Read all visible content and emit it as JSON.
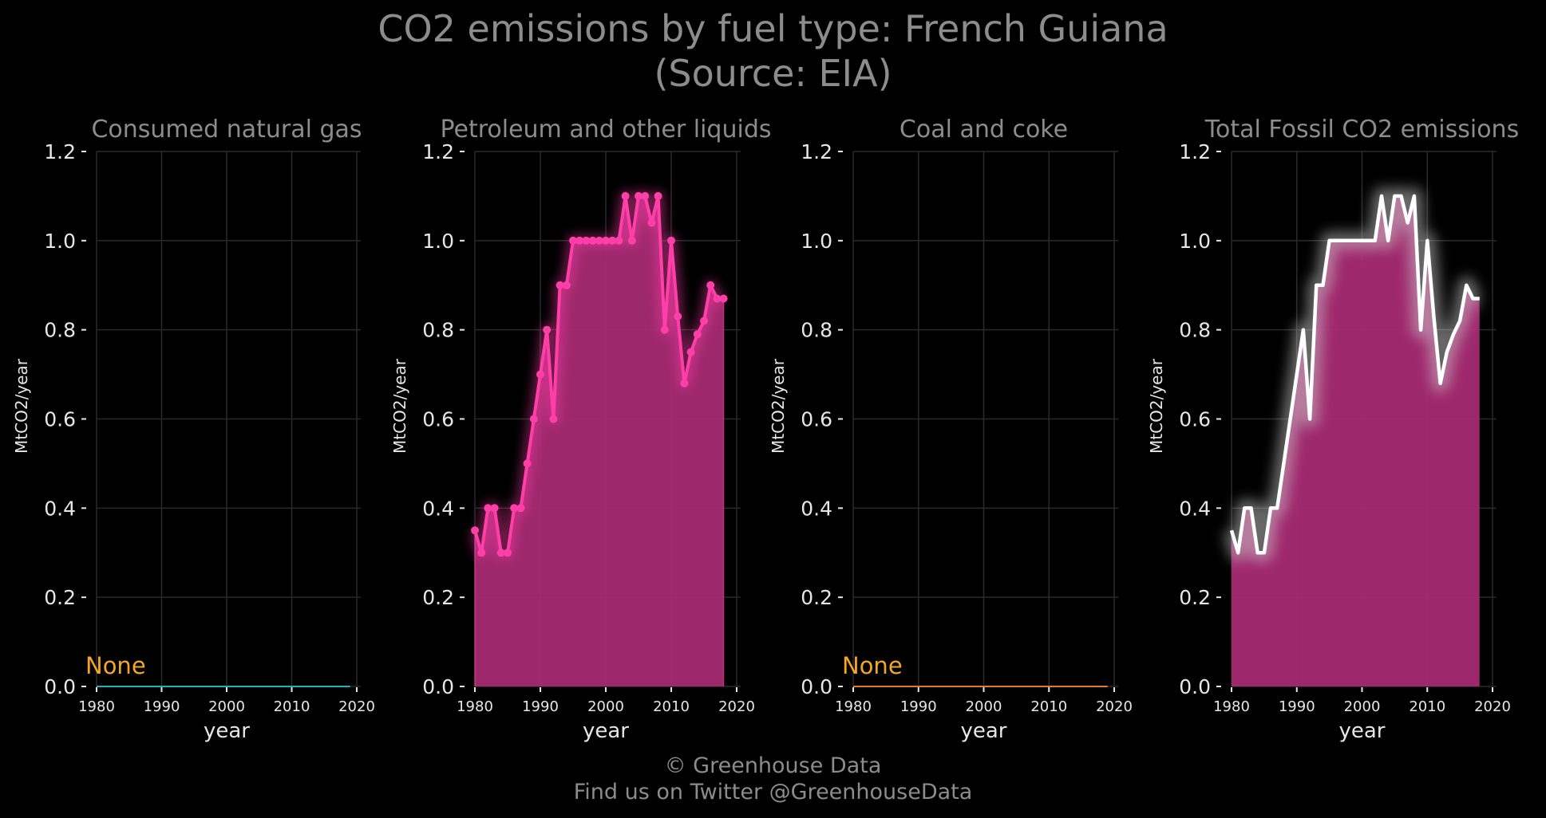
{
  "title": {
    "line1": "CO2 emissions by fuel type: French Guiana",
    "line2": "(Source: EIA)"
  },
  "footer": {
    "line1": "© Greenhouse Data",
    "line2": "Find us on Twitter @GreenhouseData"
  },
  "colors": {
    "background": "#000000",
    "grid": "#2a2a2a",
    "title_text": "#8c8c8c",
    "tick_text": "#e6e6e6",
    "petroleum_line": "#ff3ea8",
    "area_fill": "#a62a72",
    "total_line": "#ffffff",
    "gas_line": "#19b5b0",
    "coal_line": "#e07b2a",
    "none_label": "#f5a623"
  },
  "chart_data": [
    {
      "type": "area",
      "title": "Consumed natural gas",
      "xlabel": "year",
      "ylabel": "MtCO2/year",
      "xlim": [
        1980,
        2020
      ],
      "ylim": [
        0,
        1.2
      ],
      "xticks": [
        1980,
        1990,
        2000,
        2010,
        2020
      ],
      "yticks": [
        "0.0",
        "0.2",
        "0.4",
        "0.6",
        "0.8",
        "1.0",
        "1.2"
      ],
      "grid": true,
      "annotation": "None",
      "series": [
        {
          "color": "#19b5b0",
          "style": "flat",
          "x": [
            1980,
            2019
          ],
          "y": [
            0,
            0
          ]
        }
      ]
    },
    {
      "type": "area",
      "title": "Petroleum and other liquids",
      "xlabel": "year",
      "ylabel": "MtCO2/year",
      "xlim": [
        1980,
        2020
      ],
      "ylim": [
        0,
        1.2
      ],
      "xticks": [
        1980,
        1990,
        2000,
        2010,
        2020
      ],
      "yticks": [
        "0.0",
        "0.2",
        "0.4",
        "0.6",
        "0.8",
        "1.0",
        "1.2"
      ],
      "grid": true,
      "series": [
        {
          "color": "#ff3ea8",
          "style": "markers",
          "x": [
            1980,
            1981,
            1982,
            1983,
            1984,
            1985,
            1986,
            1987,
            1988,
            1989,
            1990,
            1991,
            1992,
            1993,
            1994,
            1995,
            1996,
            1997,
            1998,
            1999,
            2000,
            2001,
            2002,
            2003,
            2004,
            2005,
            2006,
            2007,
            2008,
            2009,
            2010,
            2011,
            2012,
            2013,
            2014,
            2015,
            2016,
            2017,
            2018
          ],
          "y": [
            0.35,
            0.3,
            0.4,
            0.4,
            0.3,
            0.3,
            0.4,
            0.4,
            0.5,
            0.6,
            0.7,
            0.8,
            0.6,
            0.9,
            0.9,
            1.0,
            1.0,
            1.0,
            1.0,
            1.0,
            1.0,
            1.0,
            1.0,
            1.1,
            1.0,
            1.1,
            1.1,
            1.04,
            1.1,
            0.8,
            1.0,
            0.83,
            0.68,
            0.75,
            0.79,
            0.82,
            0.9,
            0.87,
            0.87
          ]
        }
      ]
    },
    {
      "type": "area",
      "title": "Coal and coke",
      "xlabel": "year",
      "ylabel": "MtCO2/year",
      "xlim": [
        1980,
        2020
      ],
      "ylim": [
        0,
        1.2
      ],
      "xticks": [
        1980,
        1990,
        2000,
        2010,
        2020
      ],
      "yticks": [
        "0.0",
        "0.2",
        "0.4",
        "0.6",
        "0.8",
        "1.0",
        "1.2"
      ],
      "grid": true,
      "annotation": "None",
      "series": [
        {
          "color": "#e07b2a",
          "style": "flat",
          "x": [
            1980,
            2019
          ],
          "y": [
            0,
            0
          ]
        }
      ]
    },
    {
      "type": "area",
      "title": "Total Fossil CO2 emissions",
      "xlabel": "year",
      "ylabel": "MtCO2/year",
      "xlim": [
        1980,
        2020
      ],
      "ylim": [
        0,
        1.2
      ],
      "xticks": [
        1980,
        1990,
        2000,
        2010,
        2020
      ],
      "yticks": [
        "0.0",
        "0.2",
        "0.4",
        "0.6",
        "0.8",
        "1.0",
        "1.2"
      ],
      "grid": true,
      "series": [
        {
          "color": "#ffffff",
          "style": "line",
          "x": [
            1980,
            1981,
            1982,
            1983,
            1984,
            1985,
            1986,
            1987,
            1988,
            1989,
            1990,
            1991,
            1992,
            1993,
            1994,
            1995,
            1996,
            1997,
            1998,
            1999,
            2000,
            2001,
            2002,
            2003,
            2004,
            2005,
            2006,
            2007,
            2008,
            2009,
            2010,
            2011,
            2012,
            2013,
            2014,
            2015,
            2016,
            2017,
            2018
          ],
          "y": [
            0.35,
            0.3,
            0.4,
            0.4,
            0.3,
            0.3,
            0.4,
            0.4,
            0.5,
            0.6,
            0.7,
            0.8,
            0.6,
            0.9,
            0.9,
            1.0,
            1.0,
            1.0,
            1.0,
            1.0,
            1.0,
            1.0,
            1.0,
            1.1,
            1.0,
            1.1,
            1.1,
            1.04,
            1.1,
            0.8,
            1.0,
            0.83,
            0.68,
            0.75,
            0.79,
            0.82,
            0.9,
            0.87,
            0.87
          ]
        }
      ]
    }
  ]
}
